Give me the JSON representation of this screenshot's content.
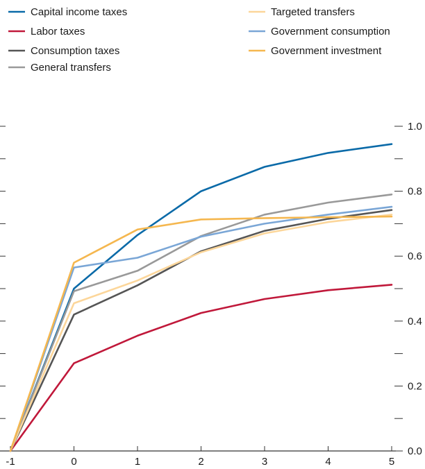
{
  "chart_data": {
    "type": "line",
    "x": [
      -1,
      0,
      1,
      2,
      3,
      4,
      5
    ],
    "xticks": [
      "-1",
      "0",
      "1",
      "2",
      "3",
      "4",
      "5"
    ],
    "ylim": [
      0,
      1.0
    ],
    "yticks_right": [
      "0.0",
      "0.2",
      "0.4",
      "0.6",
      "0.8",
      "1.0"
    ],
    "legend_placement": "top",
    "grid": false,
    "series": [
      {
        "name": "Capital income taxes",
        "color": "#0a6aa8",
        "values": [
          0.0,
          0.5,
          0.665,
          0.8,
          0.875,
          0.918,
          0.945
        ]
      },
      {
        "name": "Labor taxes",
        "color": "#c0183a",
        "values": [
          0.0,
          0.27,
          0.355,
          0.425,
          0.468,
          0.495,
          0.512
        ]
      },
      {
        "name": "Consumption taxes",
        "color": "#555555",
        "values": [
          0.0,
          0.42,
          0.51,
          0.615,
          0.678,
          0.715,
          0.742
        ]
      },
      {
        "name": "General transfers",
        "color": "#999999",
        "values": [
          0.0,
          0.492,
          0.555,
          0.662,
          0.728,
          0.765,
          0.79
        ]
      },
      {
        "name": "Targeted transfers",
        "color": "#fcd69a",
        "values": [
          0.0,
          0.455,
          0.525,
          0.612,
          0.67,
          0.705,
          0.728
        ]
      },
      {
        "name": "Government consumption",
        "color": "#7aa6d6",
        "values": [
          0.0,
          0.565,
          0.595,
          0.66,
          0.7,
          0.728,
          0.752
        ]
      },
      {
        "name": "Government investment",
        "color": "#f5b74f",
        "values": [
          0.0,
          0.58,
          0.682,
          0.713,
          0.717,
          0.72,
          0.722
        ]
      }
    ]
  }
}
